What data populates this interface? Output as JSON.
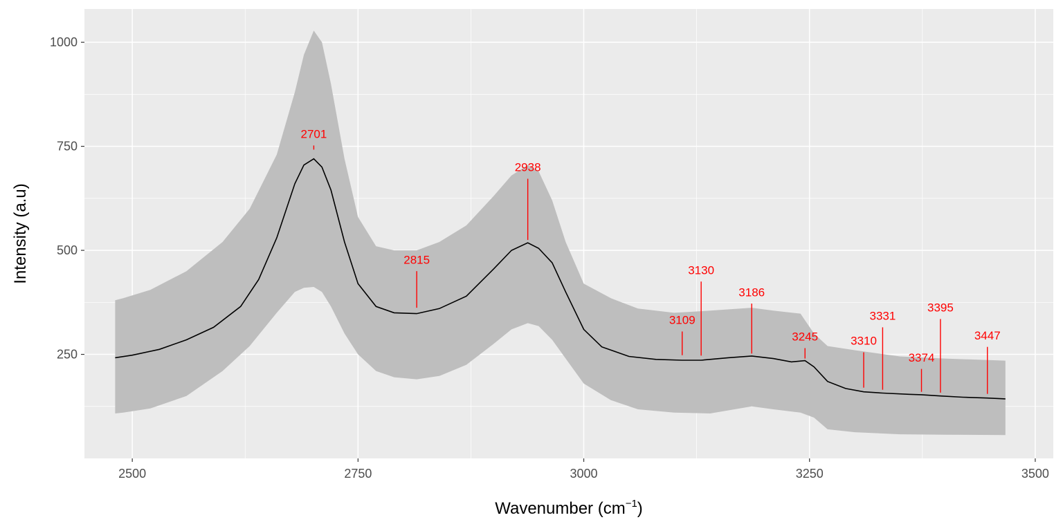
{
  "chart_data": {
    "type": "line",
    "title": "",
    "xlabel": "Wavenumber (cm",
    "xlabel_superscript": "−1",
    "xlabel_suffix": ")",
    "ylabel": "Intensity (a.u)",
    "xlim": [
      2447,
      3520
    ],
    "ylim": [
      0,
      1080
    ],
    "x_ticks": [
      2500,
      2750,
      3000,
      3250,
      3500
    ],
    "x_tick_labels": [
      "2500",
      "2750",
      "3000",
      "3250",
      "3500"
    ],
    "y_ticks": [
      250,
      500,
      750,
      1000
    ],
    "y_tick_labels": [
      "250",
      "500",
      "750",
      "1000"
    ],
    "grid": true,
    "colors": {
      "panel_background": "#ebebeb",
      "grid_major": "#ffffff",
      "ribbon": "#bebebe",
      "line": "#000000",
      "peaks": "#ff0000",
      "tick_label": "#4d4d4d"
    },
    "series": [
      {
        "type": "line",
        "x": [
          2481,
          2500,
          2530,
          2560,
          2590,
          2620,
          2640,
          2660,
          2680,
          2690,
          2701,
          2710,
          2720,
          2735,
          2750,
          2770,
          2790,
          2815,
          2840,
          2870,
          2900,
          2920,
          2938,
          2950,
          2965,
          2980,
          3000,
          3020,
          3050,
          3080,
          3109,
          3130,
          3160,
          3186,
          3210,
          3230,
          3245,
          3255,
          3270,
          3290,
          3310,
          3331,
          3360,
          3374,
          3395,
          3420,
          3447,
          3467
        ],
        "y": [
          242,
          248,
          262,
          285,
          315,
          365,
          430,
          530,
          660,
          705,
          720,
          700,
          645,
          520,
          420,
          365,
          350,
          348,
          360,
          390,
          455,
          500,
          518,
          505,
          470,
          400,
          310,
          268,
          245,
          238,
          236,
          236,
          242,
          246,
          240,
          232,
          235,
          220,
          185,
          168,
          160,
          157,
          154,
          153,
          150,
          147,
          145,
          143
        ]
      },
      {
        "type": "ribbon",
        "x": [
          2481,
          2490,
          2520,
          2560,
          2600,
          2630,
          2660,
          2680,
          2690,
          2701,
          2710,
          2720,
          2735,
          2750,
          2770,
          2790,
          2815,
          2840,
          2870,
          2900,
          2920,
          2938,
          2950,
          2965,
          2980,
          3000,
          3030,
          3060,
          3100,
          3140,
          3186,
          3210,
          3240,
          3255,
          3270,
          3300,
          3350,
          3400,
          3467
        ],
        "lower": [
          108,
          110,
          120,
          150,
          210,
          270,
          350,
          400,
          410,
          412,
          400,
          365,
          300,
          250,
          210,
          195,
          190,
          198,
          225,
          275,
          310,
          325,
          318,
          285,
          240,
          180,
          140,
          118,
          110,
          108,
          125,
          118,
          110,
          98,
          70,
          63,
          58,
          57,
          56
        ],
        "upper": [
          380,
          385,
          405,
          450,
          520,
          600,
          730,
          880,
          970,
          1028,
          1000,
          900,
          720,
          580,
          510,
          500,
          500,
          520,
          560,
          630,
          680,
          705,
          690,
          620,
          520,
          420,
          385,
          360,
          350,
          355,
          362,
          355,
          348,
          300,
          270,
          260,
          245,
          240,
          235
        ]
      }
    ],
    "peaks": [
      {
        "x": 2701,
        "label": "2701",
        "y0": 742,
        "y1": 752,
        "label_y": 770
      },
      {
        "x": 2815,
        "label": "2815",
        "y0": 362,
        "y1": 450,
        "label_y": 468
      },
      {
        "x": 2938,
        "label": "2938",
        "y0": 525,
        "y1": 672,
        "label_y": 690
      },
      {
        "x": 3109,
        "label": "3109",
        "y0": 248,
        "y1": 305,
        "label_y": 323
      },
      {
        "x": 3130,
        "label": "3130",
        "y0": 247,
        "y1": 425,
        "label_y": 443
      },
      {
        "x": 3186,
        "label": "3186",
        "y0": 252,
        "y1": 372,
        "label_y": 390
      },
      {
        "x": 3245,
        "label": "3245",
        "y0": 240,
        "y1": 265,
        "label_y": 283
      },
      {
        "x": 3310,
        "label": "3310",
        "y0": 170,
        "y1": 255,
        "label_y": 273
      },
      {
        "x": 3331,
        "label": "3331",
        "y0": 165,
        "y1": 315,
        "label_y": 333
      },
      {
        "x": 3374,
        "label": "3374",
        "y0": 160,
        "y1": 215,
        "label_y": 233
      },
      {
        "x": 3395,
        "label": "3395",
        "y0": 158,
        "y1": 335,
        "label_y": 353
      },
      {
        "x": 3447,
        "label": "3447",
        "y0": 155,
        "y1": 268,
        "label_y": 286
      }
    ]
  }
}
